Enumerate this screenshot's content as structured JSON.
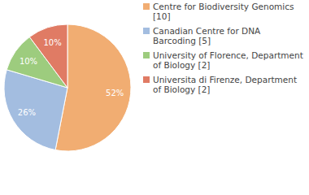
{
  "chart_data": {
    "type": "pie",
    "categories": [
      "Centre for Biodiversity Genomics [10]",
      "Canadian Centre for DNA Barcoding [5]",
      "University of Florence, Department of Biology [2]",
      "Universita di Firenze, Department of Biology [2]"
    ],
    "values": [
      52,
      26,
      10,
      10
    ],
    "value_labels": [
      "52%",
      "26%",
      "10%",
      "10%"
    ],
    "colors": [
      "#f1ad72",
      "#a3bde0",
      "#9dcc7e",
      "#e07b64"
    ],
    "data_labels": true,
    "legend": "top-right"
  }
}
